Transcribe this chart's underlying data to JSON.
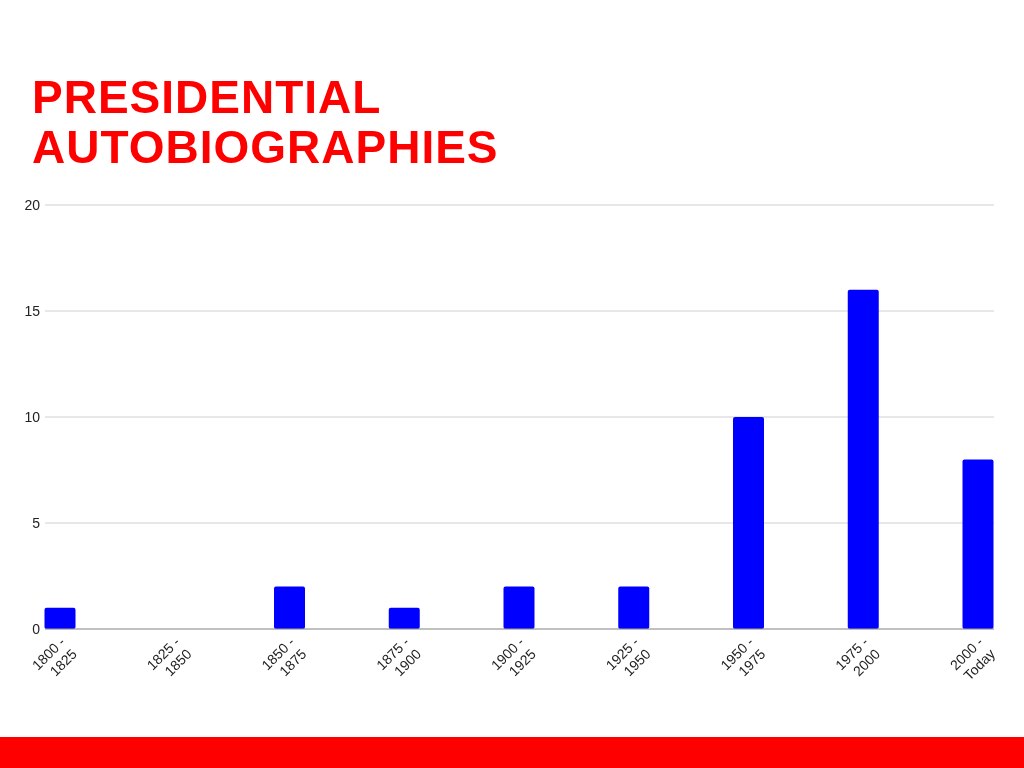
{
  "chart_data": {
    "type": "bar",
    "title": "PRESIDENTIAL AUTOBIOGRAPHIES",
    "categories": [
      "1800 - 1825",
      "1825 - 1850",
      "1850 - 1875",
      "1875 - 1900",
      "1900 - 1925",
      "1925 - 1950",
      "1950 - 1975",
      "1975 - 2000",
      "2000 - Today"
    ],
    "values": [
      1,
      0,
      2,
      1,
      2,
      2,
      10,
      16,
      8
    ],
    "color": "#0000ff",
    "ylim": [
      0,
      20
    ],
    "yticks": [
      0,
      5,
      10,
      15,
      20
    ],
    "grid": "y"
  }
}
